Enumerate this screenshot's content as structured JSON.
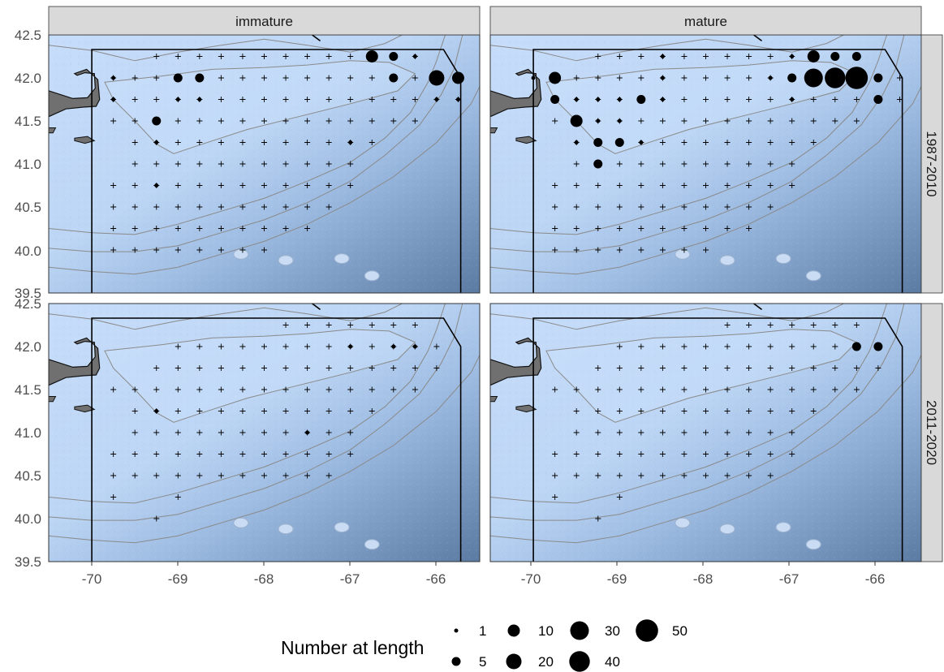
{
  "panels": {
    "columns": [
      "immature",
      "mature"
    ],
    "rows": [
      "1987-2010",
      "2011-2020"
    ]
  },
  "axes": {
    "x_ticks": [
      "-70",
      "-69",
      "-68",
      "-67",
      "-66"
    ],
    "y_ticks": [
      "39.5",
      "40.0",
      "40.5",
      "41.0",
      "41.5",
      "42.0",
      "42.5"
    ]
  },
  "legend": {
    "title": "Number at length",
    "entries": [
      "1",
      "5",
      "10",
      "20",
      "30",
      "40",
      "50"
    ]
  },
  "colors": {
    "water_light": "#c6ddfa",
    "water_deep": "#5f7fa6",
    "land": "#707070",
    "contour": "#8a8a8a",
    "boundary": "#000000",
    "strip_fill": "#d9d9d9",
    "station_marker": "#000000"
  },
  "chart_data": {
    "type": "scatter",
    "xlim": [
      -70.5,
      -65.5
    ],
    "ylim": [
      39.5,
      42.5
    ],
    "grid": false,
    "legend_placement": "bottom",
    "size_scale": {
      "1": 2.5,
      "5": 5.5,
      "10": 7.5,
      "20": 9.5,
      "30": 11.5,
      "40": 12.7,
      "50": 13.8
    },
    "strata_boundary": [
      [
        -70.0,
        39.5
      ],
      [
        -70.0,
        42.33
      ],
      [
        -65.92,
        42.33
      ],
      [
        -65.72,
        42.0
      ],
      [
        -65.72,
        39.5
      ]
    ],
    "stations": {
      "1987-2010": [
        [
          -69.25,
          42.25
        ],
        [
          -69.0,
          42.25
        ],
        [
          -68.75,
          42.25
        ],
        [
          -68.5,
          42.25
        ],
        [
          -68.25,
          42.25
        ],
        [
          -68.0,
          42.25
        ],
        [
          -67.75,
          42.25
        ],
        [
          -67.5,
          42.25
        ],
        [
          -67.25,
          42.25
        ],
        [
          -67.0,
          42.25
        ],
        [
          -66.75,
          42.25
        ],
        [
          -66.5,
          42.25
        ],
        [
          -66.25,
          42.25
        ],
        [
          -69.75,
          42.0
        ],
        [
          -69.5,
          42.0
        ],
        [
          -69.25,
          42.0
        ],
        [
          -69.0,
          42.0
        ],
        [
          -68.75,
          42.0
        ],
        [
          -68.5,
          42.0
        ],
        [
          -68.25,
          42.0
        ],
        [
          -68.0,
          42.0
        ],
        [
          -67.75,
          42.0
        ],
        [
          -67.5,
          42.0
        ],
        [
          -67.25,
          42.0
        ],
        [
          -67.0,
          42.0
        ],
        [
          -66.75,
          42.0
        ],
        [
          -66.5,
          42.0
        ],
        [
          -66.25,
          42.0
        ],
        [
          -66.0,
          42.0
        ],
        [
          -65.75,
          42.0
        ],
        [
          -69.75,
          41.75
        ],
        [
          -69.5,
          41.75
        ],
        [
          -69.25,
          41.75
        ],
        [
          -69.0,
          41.75
        ],
        [
          -68.75,
          41.75
        ],
        [
          -68.5,
          41.75
        ],
        [
          -68.25,
          41.75
        ],
        [
          -68.0,
          41.75
        ],
        [
          -67.75,
          41.75
        ],
        [
          -67.5,
          41.75
        ],
        [
          -67.25,
          41.75
        ],
        [
          -67.0,
          41.75
        ],
        [
          -66.75,
          41.75
        ],
        [
          -66.5,
          41.75
        ],
        [
          -66.25,
          41.75
        ],
        [
          -66.0,
          41.75
        ],
        [
          -65.75,
          41.75
        ],
        [
          -69.75,
          41.5
        ],
        [
          -69.5,
          41.5
        ],
        [
          -69.25,
          41.5
        ],
        [
          -69.0,
          41.5
        ],
        [
          -68.75,
          41.5
        ],
        [
          -68.5,
          41.5
        ],
        [
          -68.25,
          41.5
        ],
        [
          -68.0,
          41.5
        ],
        [
          -67.75,
          41.5
        ],
        [
          -67.5,
          41.5
        ],
        [
          -67.25,
          41.5
        ],
        [
          -67.0,
          41.5
        ],
        [
          -66.75,
          41.5
        ],
        [
          -66.5,
          41.5
        ],
        [
          -66.25,
          41.5
        ],
        [
          -69.5,
          41.25
        ],
        [
          -69.25,
          41.25
        ],
        [
          -69.0,
          41.25
        ],
        [
          -68.75,
          41.25
        ],
        [
          -68.5,
          41.25
        ],
        [
          -68.25,
          41.25
        ],
        [
          -68.0,
          41.25
        ],
        [
          -67.75,
          41.25
        ],
        [
          -67.5,
          41.25
        ],
        [
          -67.25,
          41.25
        ],
        [
          -67.0,
          41.25
        ],
        [
          -66.75,
          41.25
        ],
        [
          -69.5,
          41.0
        ],
        [
          -69.25,
          41.0
        ],
        [
          -69.0,
          41.0
        ],
        [
          -68.75,
          41.0
        ],
        [
          -68.5,
          41.0
        ],
        [
          -68.25,
          41.0
        ],
        [
          -68.0,
          41.0
        ],
        [
          -67.75,
          41.0
        ],
        [
          -67.5,
          41.0
        ],
        [
          -67.25,
          41.0
        ],
        [
          -67.0,
          41.0
        ],
        [
          -69.75,
          40.75
        ],
        [
          -69.5,
          40.75
        ],
        [
          -69.25,
          40.75
        ],
        [
          -69.0,
          40.75
        ],
        [
          -68.75,
          40.75
        ],
        [
          -68.5,
          40.75
        ],
        [
          -68.25,
          40.75
        ],
        [
          -68.0,
          40.75
        ],
        [
          -67.75,
          40.75
        ],
        [
          -67.5,
          40.75
        ],
        [
          -67.25,
          40.75
        ],
        [
          -67.0,
          40.75
        ],
        [
          -69.75,
          40.5
        ],
        [
          -69.5,
          40.5
        ],
        [
          -69.25,
          40.5
        ],
        [
          -69.0,
          40.5
        ],
        [
          -68.75,
          40.5
        ],
        [
          -68.5,
          40.5
        ],
        [
          -68.25,
          40.5
        ],
        [
          -68.0,
          40.5
        ],
        [
          -67.75,
          40.5
        ],
        [
          -67.5,
          40.5
        ],
        [
          -67.25,
          40.5
        ],
        [
          -69.75,
          40.25
        ],
        [
          -69.5,
          40.25
        ],
        [
          -69.25,
          40.25
        ],
        [
          -69.0,
          40.25
        ],
        [
          -68.75,
          40.25
        ],
        [
          -68.5,
          40.25
        ],
        [
          -68.25,
          40.25
        ],
        [
          -68.0,
          40.25
        ],
        [
          -67.75,
          40.25
        ],
        [
          -67.5,
          40.25
        ],
        [
          -69.75,
          40.0
        ],
        [
          -69.5,
          40.0
        ],
        [
          -69.25,
          40.0
        ],
        [
          -69.0,
          40.0
        ],
        [
          -68.75,
          40.0
        ],
        [
          -68.5,
          40.0
        ],
        [
          -68.25,
          40.0
        ],
        [
          -68.0,
          40.0
        ]
      ],
      "2011-2020": [
        [
          -67.75,
          42.25
        ],
        [
          -67.5,
          42.25
        ],
        [
          -67.25,
          42.25
        ],
        [
          -67.0,
          42.25
        ],
        [
          -66.75,
          42.25
        ],
        [
          -66.5,
          42.25
        ],
        [
          -66.25,
          42.25
        ],
        [
          -69.0,
          42.0
        ],
        [
          -68.75,
          42.0
        ],
        [
          -68.5,
          42.0
        ],
        [
          -68.25,
          42.0
        ],
        [
          -68.0,
          42.0
        ],
        [
          -67.75,
          42.0
        ],
        [
          -67.5,
          42.0
        ],
        [
          -67.25,
          42.0
        ],
        [
          -67.0,
          42.0
        ],
        [
          -66.75,
          42.0
        ],
        [
          -66.5,
          42.0
        ],
        [
          -66.25,
          42.0
        ],
        [
          -66.0,
          42.0
        ],
        [
          -69.25,
          41.75
        ],
        [
          -69.0,
          41.75
        ],
        [
          -68.75,
          41.75
        ],
        [
          -68.5,
          41.75
        ],
        [
          -68.25,
          41.75
        ],
        [
          -68.0,
          41.75
        ],
        [
          -67.75,
          41.75
        ],
        [
          -67.5,
          41.75
        ],
        [
          -67.25,
          41.75
        ],
        [
          -67.0,
          41.75
        ],
        [
          -66.75,
          41.75
        ],
        [
          -66.5,
          41.75
        ],
        [
          -66.25,
          41.75
        ],
        [
          -66.0,
          41.75
        ],
        [
          -69.75,
          41.5
        ],
        [
          -69.5,
          41.5
        ],
        [
          -69.25,
          41.5
        ],
        [
          -69.0,
          41.5
        ],
        [
          -68.75,
          41.5
        ],
        [
          -68.5,
          41.5
        ],
        [
          -68.25,
          41.5
        ],
        [
          -68.0,
          41.5
        ],
        [
          -67.75,
          41.5
        ],
        [
          -67.5,
          41.5
        ],
        [
          -67.25,
          41.5
        ],
        [
          -67.0,
          41.5
        ],
        [
          -66.75,
          41.5
        ],
        [
          -66.5,
          41.5
        ],
        [
          -66.25,
          41.5
        ],
        [
          -69.5,
          41.25
        ],
        [
          -69.25,
          41.25
        ],
        [
          -69.0,
          41.25
        ],
        [
          -68.75,
          41.25
        ],
        [
          -68.5,
          41.25
        ],
        [
          -68.25,
          41.25
        ],
        [
          -68.0,
          41.25
        ],
        [
          -67.75,
          41.25
        ],
        [
          -67.5,
          41.25
        ],
        [
          -67.25,
          41.25
        ],
        [
          -67.0,
          41.25
        ],
        [
          -66.75,
          41.25
        ],
        [
          -69.5,
          41.0
        ],
        [
          -69.25,
          41.0
        ],
        [
          -69.0,
          41.0
        ],
        [
          -68.75,
          41.0
        ],
        [
          -68.5,
          41.0
        ],
        [
          -68.25,
          41.0
        ],
        [
          -68.0,
          41.0
        ],
        [
          -67.75,
          41.0
        ],
        [
          -67.5,
          41.0
        ],
        [
          -67.25,
          41.0
        ],
        [
          -67.0,
          41.0
        ],
        [
          -69.75,
          40.75
        ],
        [
          -69.5,
          40.75
        ],
        [
          -69.25,
          40.75
        ],
        [
          -69.0,
          40.75
        ],
        [
          -68.75,
          40.75
        ],
        [
          -68.5,
          40.75
        ],
        [
          -68.25,
          40.75
        ],
        [
          -68.0,
          40.75
        ],
        [
          -67.75,
          40.75
        ],
        [
          -67.5,
          40.75
        ],
        [
          -67.25,
          40.75
        ],
        [
          -67.0,
          40.75
        ],
        [
          -69.75,
          40.5
        ],
        [
          -69.5,
          40.5
        ],
        [
          -69.25,
          40.5
        ],
        [
          -69.0,
          40.5
        ],
        [
          -68.75,
          40.5
        ],
        [
          -68.5,
          40.5
        ],
        [
          -68.25,
          40.5
        ],
        [
          -68.0,
          40.5
        ],
        [
          -67.75,
          40.5
        ],
        [
          -67.5,
          40.5
        ],
        [
          -67.25,
          40.5
        ],
        [
          -69.75,
          40.25
        ],
        [
          -69.0,
          40.25
        ],
        [
          -69.25,
          40.0
        ]
      ]
    },
    "catches": {
      "immature|1987-2010": [
        [
          -69.75,
          42.0,
          1
        ],
        [
          -69.75,
          41.75,
          1
        ],
        [
          -69.0,
          42.0,
          5
        ],
        [
          -68.75,
          42.0,
          5
        ],
        [
          -69.0,
          41.75,
          1
        ],
        [
          -68.75,
          41.75,
          1
        ],
        [
          -69.25,
          41.5,
          5
        ],
        [
          -69.25,
          41.25,
          1
        ],
        [
          -69.25,
          40.75,
          1
        ],
        [
          -67.0,
          41.25,
          1
        ],
        [
          -66.75,
          42.25,
          10
        ],
        [
          -66.5,
          42.25,
          5
        ],
        [
          -66.25,
          42.25,
          1
        ],
        [
          -66.5,
          42.0,
          5
        ],
        [
          -66.0,
          42.0,
          20
        ],
        [
          -65.75,
          42.0,
          10
        ],
        [
          -66.0,
          41.75,
          1
        ],
        [
          -65.75,
          41.75,
          1
        ]
      ],
      "mature|1987-2010": [
        [
          -70.0,
          42.0,
          1
        ],
        [
          -69.75,
          42.0,
          10
        ],
        [
          -69.75,
          41.75,
          5
        ],
        [
          -69.5,
          41.75,
          1
        ],
        [
          -69.5,
          41.5,
          10
        ],
        [
          -69.25,
          41.5,
          1
        ],
        [
          -69.0,
          41.5,
          1
        ],
        [
          -69.25,
          41.75,
          1
        ],
        [
          -69.0,
          41.75,
          1
        ],
        [
          -68.75,
          41.75,
          5
        ],
        [
          -68.5,
          41.75,
          1
        ],
        [
          -69.5,
          41.25,
          1
        ],
        [
          -69.25,
          41.25,
          5
        ],
        [
          -69.0,
          41.25,
          5
        ],
        [
          -68.75,
          41.25,
          1
        ],
        [
          -69.25,
          41.0,
          5
        ],
        [
          -68.5,
          42.25,
          1
        ],
        [
          -68.5,
          42.0,
          1
        ],
        [
          -67.25,
          42.0,
          1
        ],
        [
          -67.0,
          42.25,
          1
        ],
        [
          -66.75,
          42.25,
          10
        ],
        [
          -66.5,
          42.25,
          5
        ],
        [
          -66.25,
          42.25,
          5
        ],
        [
          -67.0,
          42.0,
          5
        ],
        [
          -66.75,
          42.0,
          30
        ],
        [
          -66.5,
          42.0,
          40
        ],
        [
          -66.25,
          42.0,
          50
        ],
        [
          -66.0,
          42.0,
          5
        ],
        [
          -67.0,
          41.75,
          1
        ],
        [
          -66.0,
          41.75,
          5
        ]
      ],
      "immature|2011-2020": [
        [
          -69.25,
          41.25,
          1
        ],
        [
          -67.5,
          41.0,
          1
        ],
        [
          -67.0,
          42.0,
          1
        ],
        [
          -66.5,
          42.0,
          1
        ],
        [
          -66.25,
          42.0,
          1
        ]
      ],
      "mature|2011-2020": [
        [
          -66.25,
          42.0,
          5
        ],
        [
          -66.0,
          42.0,
          5
        ]
      ]
    }
  }
}
